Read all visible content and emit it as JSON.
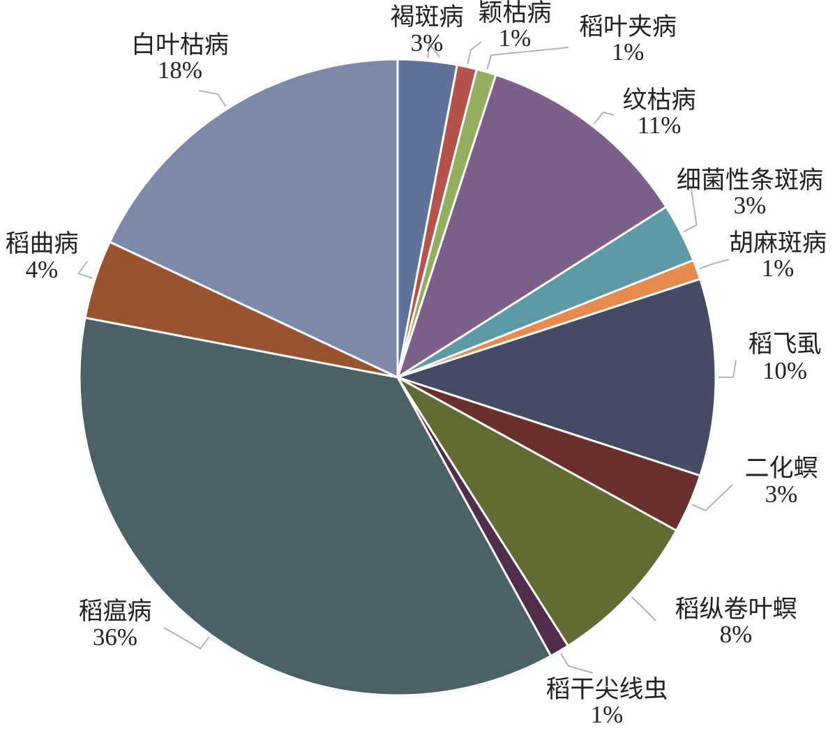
{
  "chart_data": {
    "type": "pie",
    "categories": [
      "褐斑病",
      "颖枯病",
      "稻叶夹病",
      "纹枯病",
      "细菌性条斑病",
      "胡麻斑病",
      "稻飞虱",
      "二化螟",
      "稻纵卷叶螟",
      "稻干尖线虫",
      "稻瘟病",
      "稻曲病",
      "白叶枯病"
    ],
    "values": [
      3,
      1,
      1,
      11,
      3,
      1,
      10,
      3,
      8,
      1,
      36,
      4,
      18
    ],
    "value_labels": [
      "3%",
      "1%",
      "1%",
      "11%",
      "3%",
      "1%",
      "10%",
      "3%",
      "8%",
      "1%",
      "36%",
      "4%",
      "18%"
    ],
    "colors": [
      "#5f7299",
      "#b4524c",
      "#93ae5e",
      "#7e5f8a",
      "#5e9aa6",
      "#e68a4e",
      "#454b63",
      "#6a302d",
      "#636a33",
      "#4f2e4a",
      "#4a6167",
      "#9a5330",
      "#7b8aab"
    ]
  }
}
